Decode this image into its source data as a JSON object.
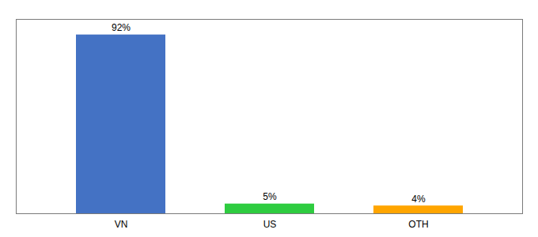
{
  "chart_data": {
    "type": "bar",
    "categories": [
      "VN",
      "US",
      "OTH"
    ],
    "values": [
      92,
      5,
      4
    ],
    "colors": [
      "#4472C4",
      "#2ECC40",
      "#FFA500"
    ],
    "value_labels": [
      "92%",
      "5%",
      "4%"
    ],
    "data_labels": true,
    "ylim": [
      0,
      100
    ],
    "tick_labels": "x",
    "grid": false
  }
}
